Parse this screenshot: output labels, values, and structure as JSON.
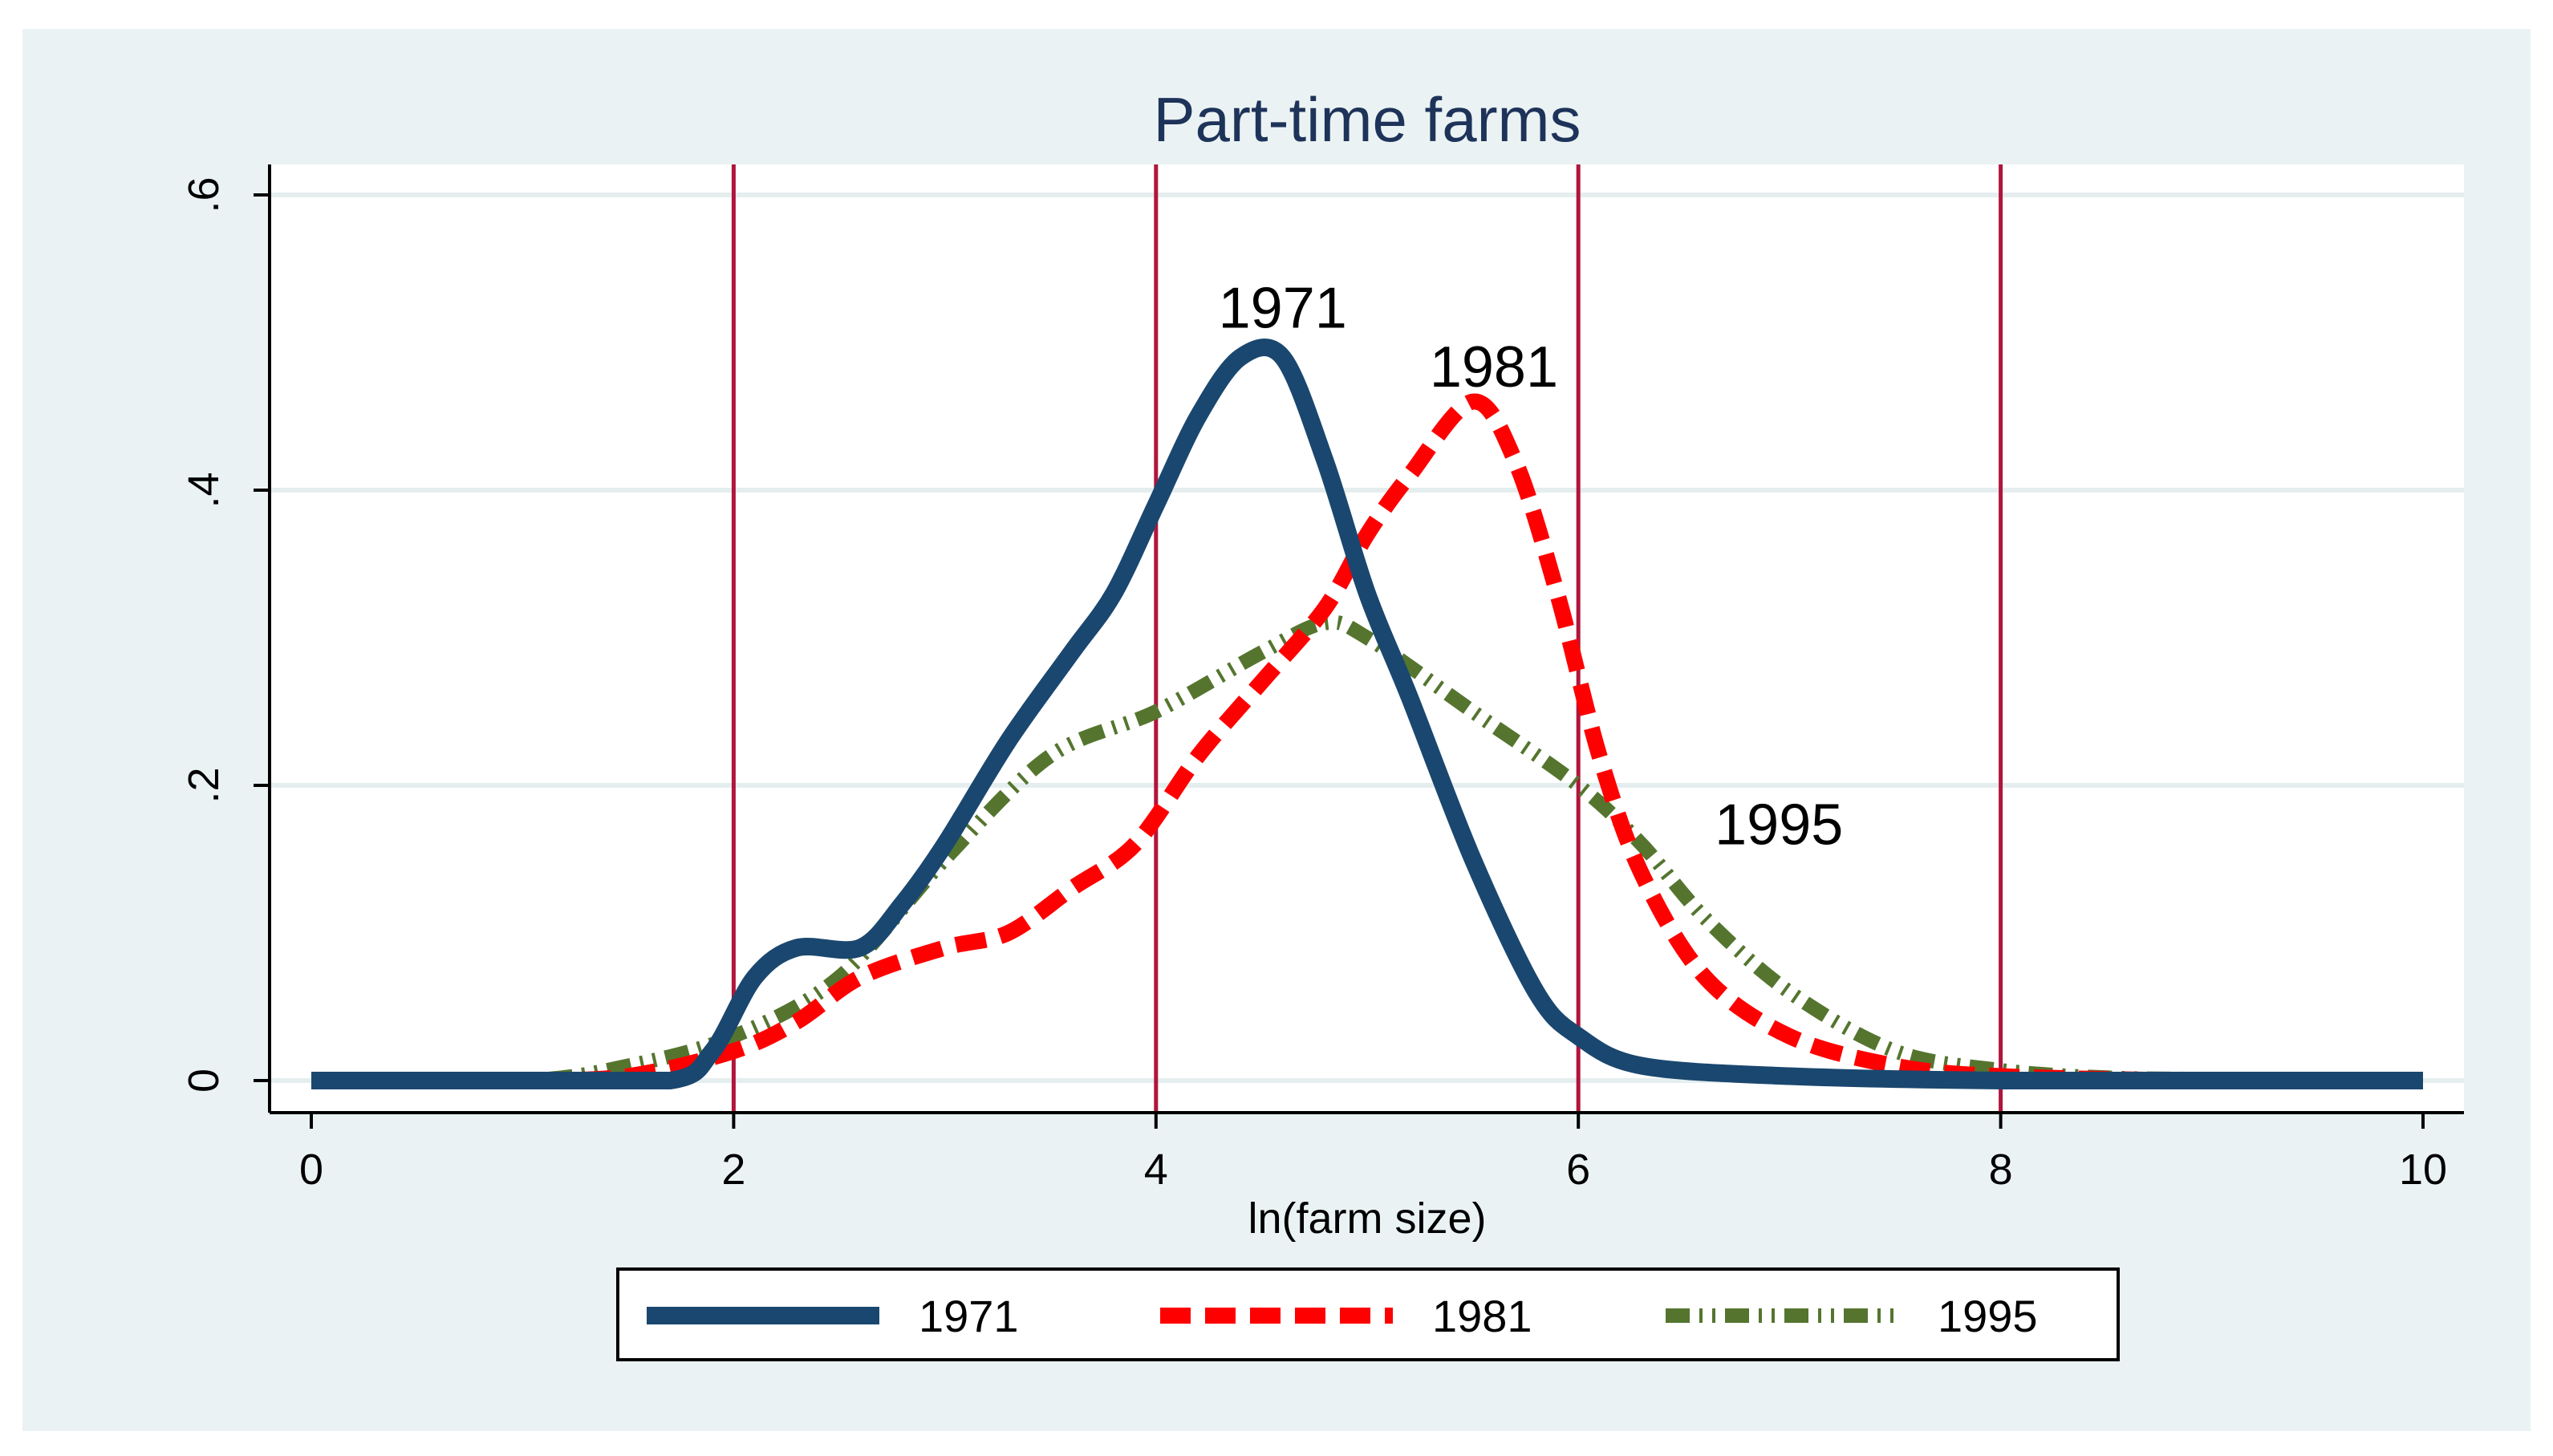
{
  "chart_data": {
    "type": "line",
    "title": "Part-time farms",
    "xlabel": "ln(farm size)",
    "ylabel": "",
    "xlim": [
      0,
      10
    ],
    "ylim": [
      0,
      0.6
    ],
    "xticks": [
      0,
      2,
      4,
      6,
      8,
      10
    ],
    "xtick_labels": [
      "0",
      "2",
      "4",
      "6",
      "8",
      "10"
    ],
    "yticks": [
      0,
      0.2,
      0.4,
      0.6
    ],
    "ytick_labels": [
      "0",
      ".2",
      ".4",
      ".6"
    ],
    "reference_lines_x": [
      2,
      4,
      6,
      8
    ],
    "legend_position": "bottom",
    "series": [
      {
        "name": "1971",
        "color": "#1a476f",
        "style": "solid",
        "x": [
          0,
          1.0,
          1.7,
          1.9,
          2.1,
          2.3,
          2.6,
          2.8,
          3.0,
          3.3,
          3.6,
          3.8,
          4.0,
          4.2,
          4.4,
          4.6,
          4.8,
          5.0,
          5.2,
          5.5,
          5.8,
          6.0,
          6.3,
          7.0,
          8.0,
          9.0,
          10.0
        ],
        "y": [
          0,
          0,
          0,
          0.02,
          0.07,
          0.09,
          0.09,
          0.12,
          0.16,
          0.23,
          0.29,
          0.33,
          0.39,
          0.45,
          0.49,
          0.49,
          0.42,
          0.33,
          0.26,
          0.15,
          0.06,
          0.03,
          0.01,
          0.003,
          0,
          0,
          0
        ]
      },
      {
        "name": "1981",
        "color": "#ff0000",
        "style": "dashed",
        "x": [
          0,
          1.0,
          1.5,
          2.0,
          2.3,
          2.6,
          3.0,
          3.3,
          3.6,
          3.9,
          4.2,
          4.5,
          4.8,
          5.0,
          5.2,
          5.5,
          5.7,
          5.9,
          6.1,
          6.3,
          6.6,
          7.0,
          7.5,
          8.0,
          9.0,
          10.0
        ],
        "y": [
          0,
          0,
          0.003,
          0.02,
          0.04,
          0.07,
          0.09,
          0.1,
          0.13,
          0.16,
          0.22,
          0.27,
          0.32,
          0.37,
          0.41,
          0.46,
          0.42,
          0.33,
          0.22,
          0.14,
          0.07,
          0.03,
          0.01,
          0.003,
          0,
          0
        ]
      },
      {
        "name": "1995",
        "color": "#55752f",
        "style": "dash-dot",
        "x": [
          0,
          1.0,
          1.5,
          2.0,
          2.5,
          3.0,
          3.5,
          4.0,
          4.5,
          4.8,
          5.0,
          5.5,
          6.0,
          6.3,
          6.6,
          7.0,
          7.5,
          8.0,
          8.5,
          9.0,
          10.0
        ],
        "y": [
          0,
          0,
          0.01,
          0.03,
          0.07,
          0.15,
          0.22,
          0.25,
          0.29,
          0.31,
          0.3,
          0.25,
          0.2,
          0.16,
          0.11,
          0.06,
          0.02,
          0.007,
          0.002,
          0.001,
          0
        ]
      }
    ],
    "annotations": [
      {
        "text": "1971",
        "x": 4.6,
        "y": 0.51
      },
      {
        "text": "1981",
        "x": 5.6,
        "y": 0.47
      },
      {
        "text": "1995",
        "x": 6.95,
        "y": 0.16
      }
    ]
  }
}
